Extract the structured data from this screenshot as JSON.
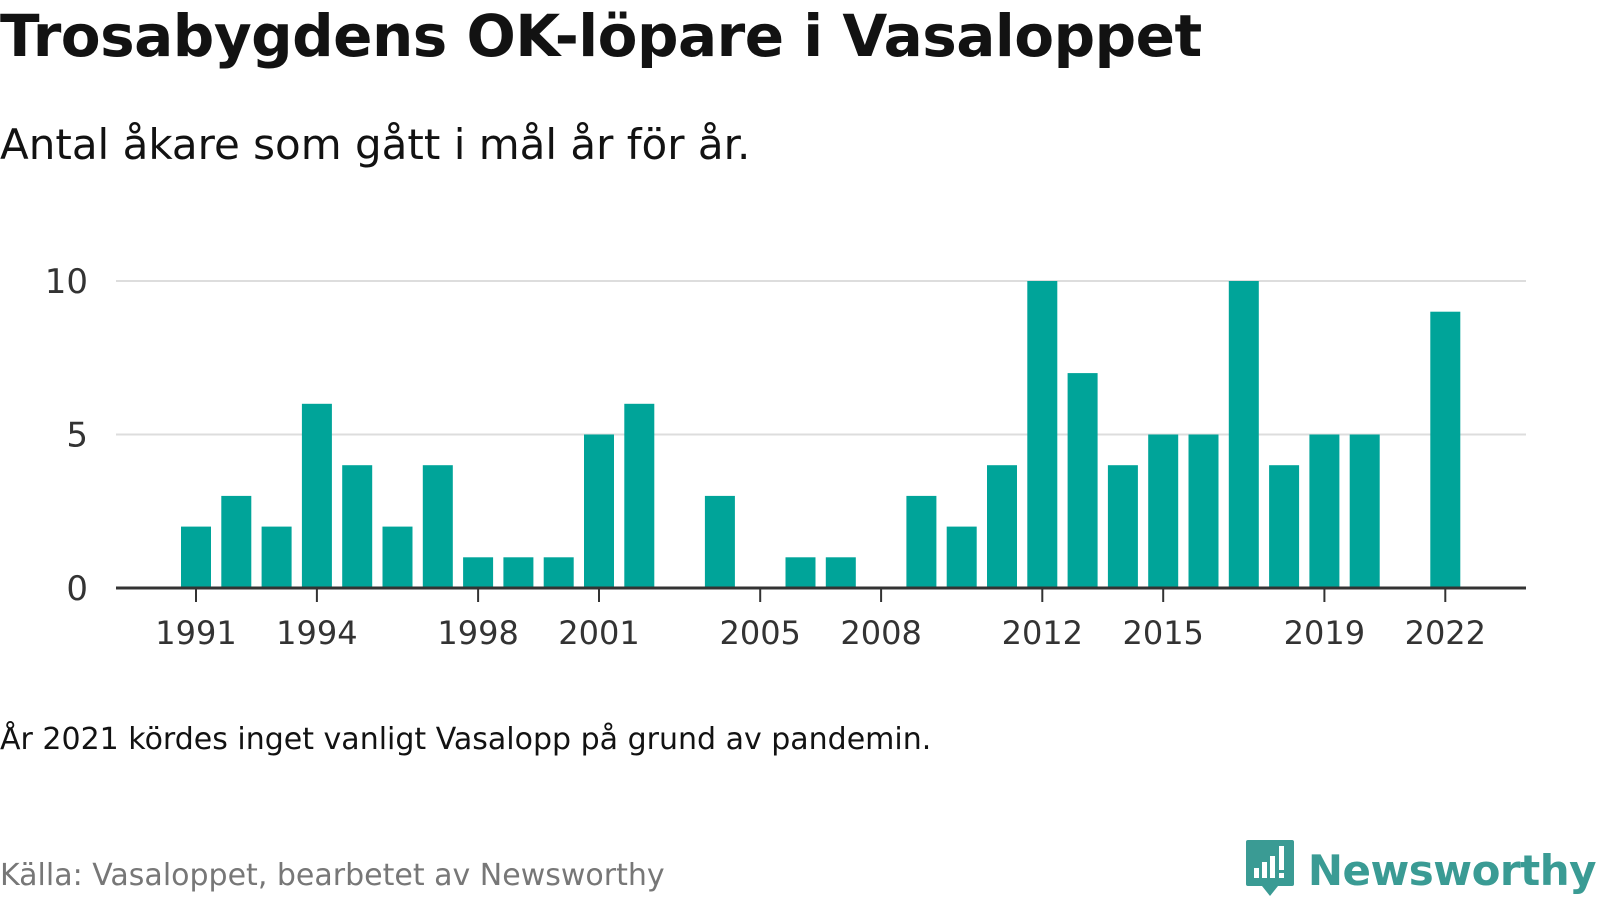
{
  "header": {
    "title": "Trosabygdens OK-löpare i Vasaloppet",
    "subtitle": "Antal åkare som gått i mål år för år."
  },
  "footer": {
    "note": "År 2021 kördes inget vanligt Vasalopp på grund av pandemin.",
    "source": "Källa: Vasaloppet, bearbetet av Newsworthy",
    "brand": "Newsworthy",
    "brand_icon": "newsworthy-logo-icon"
  },
  "colors": {
    "bar": "#00a499",
    "brand": "#3a9b94",
    "grid": "#dddddd",
    "axis": "#333333",
    "text": "#121212",
    "muted": "#777777"
  },
  "chart_data": {
    "type": "bar",
    "x": [
      1991,
      1992,
      1993,
      1994,
      1995,
      1996,
      1997,
      1998,
      1999,
      2000,
      2001,
      2002,
      2003,
      2004,
      2005,
      2006,
      2007,
      2008,
      2009,
      2010,
      2011,
      2012,
      2013,
      2014,
      2015,
      2016,
      2017,
      2018,
      2019,
      2020,
      2021,
      2022
    ],
    "values": [
      2,
      3,
      2,
      6,
      4,
      2,
      4,
      1,
      1,
      1,
      5,
      6,
      0,
      3,
      0,
      1,
      1,
      0,
      3,
      2,
      4,
      10,
      7,
      4,
      5,
      5,
      10,
      4,
      5,
      5,
      0,
      9
    ],
    "x_ticks": [
      1991,
      1994,
      1998,
      2001,
      2005,
      2008,
      2012,
      2015,
      2019,
      2022
    ],
    "y_ticks": [
      0,
      5,
      10
    ],
    "ylim": [
      0,
      10
    ],
    "grid": true,
    "legend": "none"
  }
}
